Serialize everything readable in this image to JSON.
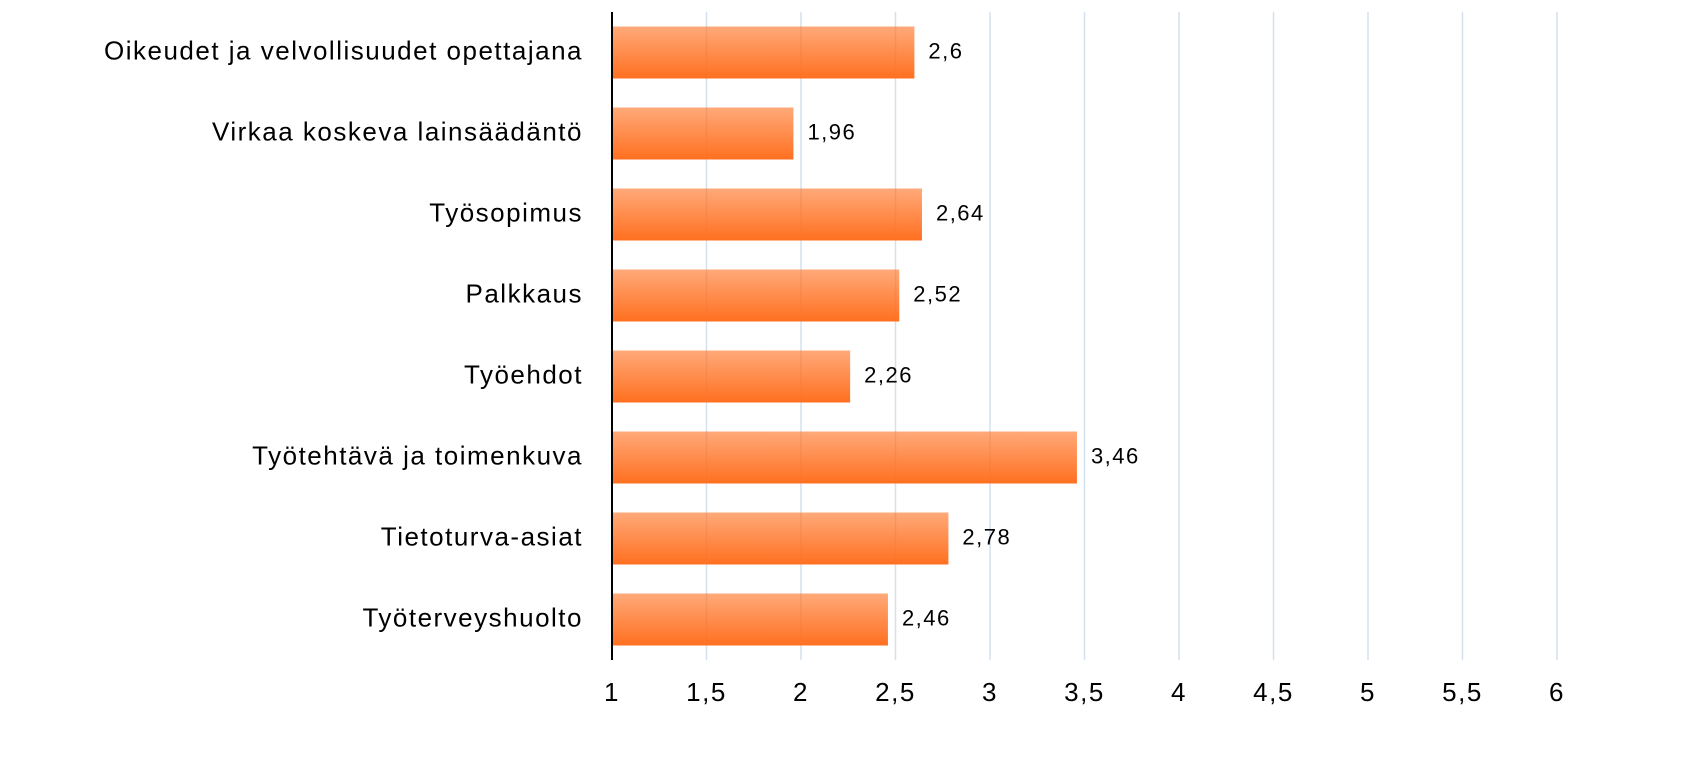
{
  "chart_data": {
    "type": "bar",
    "orientation": "horizontal",
    "categories": [
      "Oikeudet ja velvollisuudet opettajana",
      "Virkaa koskeva lainsäädäntö",
      "Työsopimus",
      "Palkkaus",
      "Työehdot",
      "Työtehtävä ja toimenkuva",
      "Tietoturva-asiat",
      "Työterveyshuolto"
    ],
    "values": [
      2.6,
      1.96,
      2.64,
      2.52,
      2.26,
      3.46,
      2.78,
      2.46
    ],
    "value_labels": [
      "2,6",
      "1,96",
      "2,64",
      "2,52",
      "2,26",
      "3,46",
      "2,78",
      "2,46"
    ],
    "color": "#ff7020",
    "xlim": [
      1,
      6
    ],
    "xticks": [
      1,
      {
        "value": 1.5,
        "label": "1,5"
      },
      2,
      {
        "value": 2.5,
        "label": "2,5"
      },
      3,
      {
        "value": 3.5,
        "label": "3,5"
      },
      4,
      {
        "value": 4.5,
        "label": "4,5"
      },
      5,
      {
        "value": 5.5,
        "label": "5,5"
      },
      6
    ],
    "grid": true
  }
}
